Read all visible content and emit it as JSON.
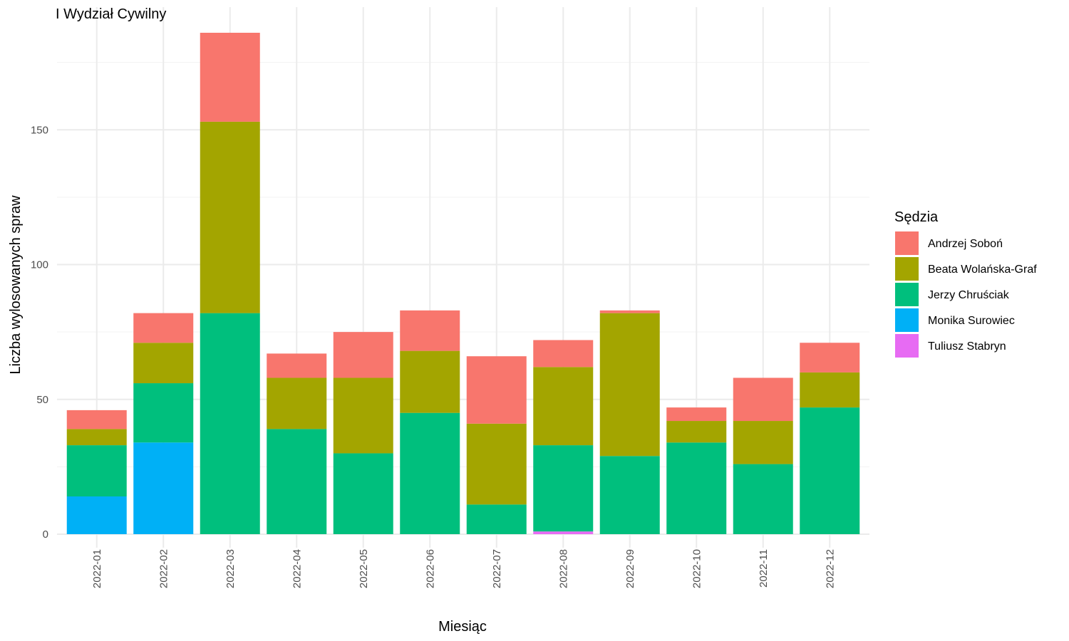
{
  "chart_data": {
    "type": "bar",
    "stacked": true,
    "title": "I Wydział Cywilny",
    "xlabel": "Miesiąc",
    "ylabel": "Liczba wylosowanych spraw",
    "ylim": [
      0,
      195
    ],
    "yticks": [
      0,
      50,
      100,
      150
    ],
    "grid": true,
    "legend_title": "Sędzia",
    "legend_position": "right",
    "categories": [
      "2022-01",
      "2022-02",
      "2022-03",
      "2022-04",
      "2022-05",
      "2022-06",
      "2022-07",
      "2022-08",
      "2022-09",
      "2022-10",
      "2022-11",
      "2022-12"
    ],
    "series": [
      {
        "name": "Tuliusz Stabryn",
        "color": "#E76BF3",
        "values": [
          0,
          0,
          0,
          0,
          0,
          0,
          0,
          1,
          0,
          0,
          0,
          0
        ]
      },
      {
        "name": "Monika Surowiec",
        "color": "#00B0F6",
        "values": [
          14,
          34,
          0,
          0,
          0,
          0,
          0,
          0,
          0,
          0,
          0,
          0
        ]
      },
      {
        "name": "Jerzy Chruściak",
        "color": "#00BF7D",
        "values": [
          19,
          22,
          82,
          39,
          30,
          45,
          11,
          32,
          29,
          34,
          26,
          47
        ]
      },
      {
        "name": "Beata Wolańska-Graf",
        "color": "#A3A500",
        "values": [
          6,
          15,
          71,
          19,
          28,
          23,
          30,
          29,
          53,
          8,
          16,
          13
        ]
      },
      {
        "name": "Andrzej Soboń",
        "color": "#F8766D",
        "values": [
          7,
          11,
          33,
          9,
          17,
          15,
          25,
          10,
          1,
          5,
          16,
          11
        ]
      }
    ],
    "legend_order": [
      "Andrzej Soboń",
      "Beata Wolańska-Graf",
      "Jerzy Chruściak",
      "Monika Surowiec",
      "Tuliusz Stabryn"
    ]
  }
}
